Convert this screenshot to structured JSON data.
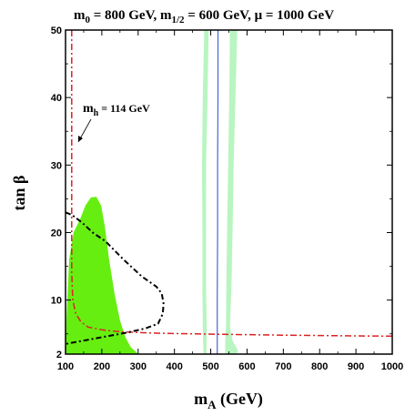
{
  "chart_data": {
    "type": "line",
    "title": "m0 = 800 GeV, m1/2 = 600 GeV, μ = 1000 GeV",
    "title_parts": {
      "p1": "m",
      "p1sub": "0",
      "p2": " = 800 GeV, m",
      "p2sub": "1/2",
      "p3": " = 600 GeV, μ = 1000 GeV"
    },
    "xlabel": "mA (GeV)",
    "xlabel_parts": {
      "main": "m",
      "sub": "A",
      "rest": " (GeV)"
    },
    "ylabel": "tan β",
    "xlim": [
      100,
      1000
    ],
    "ylim": [
      2,
      50
    ],
    "x_ticks": [
      "100",
      "200",
      "300",
      "400",
      "500",
      "600",
      "700",
      "800",
      "900",
      "1000"
    ],
    "y_ticks": [
      "2",
      "10",
      "20",
      "30",
      "40",
      "50"
    ],
    "grid": false,
    "annotation": {
      "main": "m",
      "sub": "h",
      "rest": " = 114 GeV",
      "arrow_to": [
        115,
        31
      ]
    },
    "colors": {
      "bright_green": "#66ee11",
      "pale_green": "#b8f5c0",
      "blue_line": "#4466dd",
      "red_line": "#dd2222",
      "black_line": "#000000"
    },
    "regions": [
      {
        "name": "bright-green-region",
        "points": [
          [
            100,
            2
          ],
          [
            103,
            8
          ],
          [
            110,
            16
          ],
          [
            122,
            20
          ],
          [
            140,
            22
          ],
          [
            155,
            24
          ],
          [
            170,
            25.2
          ],
          [
            185,
            25.3
          ],
          [
            198,
            24
          ],
          [
            208,
            21
          ],
          [
            220,
            16
          ],
          [
            235,
            11
          ],
          [
            250,
            7
          ],
          [
            265,
            4.5
          ],
          [
            280,
            3
          ],
          [
            295,
            2.3
          ],
          [
            300,
            2
          ],
          [
            100,
            2
          ]
        ]
      },
      {
        "name": "pale-green-band-left",
        "points": [
          [
            482,
            50
          ],
          [
            494,
            50
          ],
          [
            491,
            40
          ],
          [
            487,
            30
          ],
          [
            487,
            20
          ],
          [
            487,
            12
          ],
          [
            489,
            6
          ],
          [
            488,
            2
          ],
          [
            480,
            2
          ],
          [
            478,
            6
          ],
          [
            477,
            12
          ],
          [
            477,
            20
          ],
          [
            476,
            30
          ],
          [
            478,
            40
          ],
          [
            482,
            50
          ]
        ]
      },
      {
        "name": "pale-green-band-right",
        "points": [
          [
            553,
            50
          ],
          [
            573,
            50
          ],
          [
            568,
            40
          ],
          [
            563,
            30
          ],
          [
            560,
            20
          ],
          [
            557,
            12
          ],
          [
            553,
            6
          ],
          [
            560,
            4
          ],
          [
            575,
            2.5
          ],
          [
            572,
            2
          ],
          [
            540,
            2
          ],
          [
            540,
            4
          ],
          [
            542,
            6
          ],
          [
            543,
            12
          ],
          [
            545,
            20
          ],
          [
            548,
            30
          ],
          [
            551,
            40
          ],
          [
            553,
            50
          ]
        ]
      }
    ],
    "series": [
      {
        "name": "mh-contour-red",
        "style": "dash-dot",
        "points": [
          [
            117,
            50
          ],
          [
            117,
            40
          ],
          [
            117,
            30
          ],
          [
            117,
            20
          ],
          [
            117,
            14
          ],
          [
            120,
            10
          ],
          [
            128,
            8
          ],
          [
            142,
            6.8
          ],
          [
            162,
            6
          ],
          [
            200,
            5.6
          ],
          [
            250,
            5.3
          ],
          [
            350,
            5.1
          ],
          [
            500,
            4.95
          ],
          [
            700,
            4.8
          ],
          [
            900,
            4.7
          ],
          [
            1000,
            4.65
          ]
        ]
      },
      {
        "name": "blue-line",
        "style": "solid",
        "points": [
          [
            520,
            50
          ],
          [
            520,
            40
          ],
          [
            519,
            30
          ],
          [
            519,
            20
          ],
          [
            518,
            10
          ],
          [
            518,
            2
          ]
        ]
      },
      {
        "name": "black-contour",
        "style": "dash-dot",
        "points": [
          [
            100,
            23
          ],
          [
            118,
            22.6
          ],
          [
            145,
            21.5
          ],
          [
            175,
            20
          ],
          [
            210,
            18.7
          ],
          [
            260,
            16
          ],
          [
            310,
            13.5
          ],
          [
            350,
            12
          ],
          [
            365,
            11
          ],
          [
            370,
            9.5
          ],
          [
            368,
            8
          ],
          [
            355,
            6.5
          ],
          [
            320,
            5.8
          ],
          [
            270,
            5.2
          ],
          [
            220,
            4.7
          ],
          [
            170,
            4.2
          ],
          [
            130,
            3.8
          ],
          [
            110,
            3.6
          ],
          [
            100,
            3.5
          ]
        ]
      }
    ]
  }
}
